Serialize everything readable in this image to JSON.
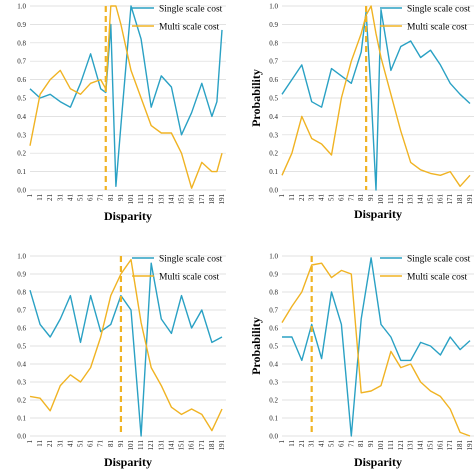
{
  "colors": {
    "single": "#2aa1c4",
    "multi": "#f0b323",
    "grid": "#d9d9d9",
    "marker": "#f0b323"
  },
  "y_ticks": [
    "0.0",
    "0.1",
    "0.2",
    "0.3",
    "0.4",
    "0.5",
    "0.6",
    "0.7",
    "0.8",
    "0.9",
    "1.0"
  ],
  "chart_data": [
    {
      "type": "line",
      "xlabel": "Disparity",
      "ylabel": "",
      "ylim": [
        0,
        1
      ],
      "categories": [
        "1",
        "11",
        "21",
        "31",
        "41",
        "51",
        "61",
        "71",
        "81",
        "91",
        "101",
        "111",
        "121",
        "131",
        "141",
        "151",
        "161",
        "171",
        "181",
        "191"
      ],
      "x": [
        1,
        11,
        21,
        31,
        41,
        51,
        61,
        71,
        76,
        81,
        86,
        91,
        101,
        111,
        121,
        131,
        141,
        151,
        161,
        171,
        181,
        186,
        191
      ],
      "marker_x": 76,
      "series": [
        {
          "name": "Single scale cost",
          "values": [
            0.55,
            0.5,
            0.52,
            0.48,
            0.45,
            0.58,
            0.74,
            0.55,
            0.53,
            0.9,
            0.02,
            0.35,
            1.0,
            0.82,
            0.45,
            0.62,
            0.56,
            0.3,
            0.42,
            0.58,
            0.4,
            0.48,
            0.87
          ]
        },
        {
          "name": "Multi scale cost",
          "values": [
            0.24,
            0.52,
            0.6,
            0.65,
            0.55,
            0.52,
            0.58,
            0.6,
            0.55,
            1.0,
            1.0,
            0.9,
            0.65,
            0.5,
            0.35,
            0.31,
            0.31,
            0.2,
            0.01,
            0.15,
            0.1,
            0.1,
            0.2
          ]
        }
      ],
      "legend": "top-right"
    },
    {
      "type": "line",
      "xlabel": "Disparity",
      "ylabel": "Probability",
      "ylim": [
        0,
        1
      ],
      "categories": [
        "1",
        "11",
        "21",
        "31",
        "41",
        "51",
        "61",
        "71",
        "81",
        "91",
        "101",
        "111",
        "121",
        "131",
        "141",
        "151",
        "161",
        "171",
        "181",
        "191"
      ],
      "x": [
        1,
        11,
        21,
        31,
        41,
        51,
        61,
        71,
        81,
        86,
        91,
        96,
        101,
        111,
        121,
        131,
        141,
        151,
        161,
        171,
        181,
        191
      ],
      "marker_x": 86,
      "series": [
        {
          "name": "Single scale cost",
          "values": [
            0.52,
            0.6,
            0.68,
            0.48,
            0.45,
            0.66,
            0.62,
            0.58,
            0.75,
            0.97,
            0.52,
            0.0,
            0.98,
            0.65,
            0.78,
            0.81,
            0.72,
            0.76,
            0.68,
            0.58,
            0.52,
            0.47
          ]
        },
        {
          "name": "Multi scale cost",
          "values": [
            0.08,
            0.2,
            0.4,
            0.28,
            0.25,
            0.19,
            0.5,
            0.7,
            0.85,
            0.95,
            1.0,
            0.85,
            0.72,
            0.52,
            0.32,
            0.15,
            0.11,
            0.09,
            0.08,
            0.1,
            0.02,
            0.08
          ]
        }
      ],
      "legend": "top-right"
    },
    {
      "type": "line",
      "xlabel": "Disparity",
      "ylabel": "",
      "ylim": [
        0,
        1
      ],
      "categories": [
        "1",
        "11",
        "21",
        "31",
        "41",
        "51",
        "61",
        "71",
        "81",
        "91",
        "101",
        "111",
        "121",
        "131",
        "141",
        "151",
        "161",
        "171",
        "181",
        "191"
      ],
      "x": [
        1,
        11,
        21,
        31,
        41,
        51,
        61,
        71,
        81,
        91,
        101,
        111,
        121,
        131,
        141,
        151,
        161,
        171,
        181,
        191
      ],
      "marker_x": 91,
      "series": [
        {
          "name": "Single scale cost",
          "values": [
            0.81,
            0.62,
            0.55,
            0.65,
            0.78,
            0.52,
            0.78,
            0.58,
            0.62,
            0.78,
            0.7,
            0.0,
            0.96,
            0.65,
            0.57,
            0.78,
            0.6,
            0.7,
            0.52,
            0.55
          ]
        },
        {
          "name": "Multi scale cost",
          "values": [
            0.22,
            0.21,
            0.14,
            0.28,
            0.34,
            0.3,
            0.38,
            0.55,
            0.78,
            0.9,
            0.98,
            0.63,
            0.38,
            0.28,
            0.16,
            0.12,
            0.15,
            0.12,
            0.03,
            0.15
          ]
        }
      ],
      "legend": "top-right"
    },
    {
      "type": "line",
      "xlabel": "Disparity",
      "ylabel": "Probability",
      "ylim": [
        0,
        1
      ],
      "categories": [
        "1",
        "11",
        "21",
        "31",
        "41",
        "51",
        "61",
        "71",
        "81",
        "91",
        "101",
        "111",
        "121",
        "131",
        "141",
        "151",
        "161",
        "171",
        "181",
        "191"
      ],
      "x": [
        1,
        11,
        21,
        31,
        41,
        51,
        61,
        71,
        81,
        91,
        101,
        111,
        121,
        131,
        141,
        151,
        161,
        171,
        181,
        191
      ],
      "marker_x": 31,
      "series": [
        {
          "name": "Single scale cost",
          "values": [
            0.55,
            0.55,
            0.42,
            0.62,
            0.43,
            0.8,
            0.62,
            0.0,
            0.65,
            0.99,
            0.62,
            0.55,
            0.42,
            0.42,
            0.52,
            0.5,
            0.45,
            0.55,
            0.48,
            0.53
          ]
        },
        {
          "name": "Multi scale cost",
          "values": [
            0.63,
            0.72,
            0.8,
            0.95,
            0.96,
            0.88,
            0.92,
            0.9,
            0.24,
            0.25,
            0.28,
            0.47,
            0.38,
            0.4,
            0.3,
            0.25,
            0.22,
            0.15,
            0.02,
            0.0
          ]
        }
      ],
      "legend": "top-right"
    }
  ]
}
